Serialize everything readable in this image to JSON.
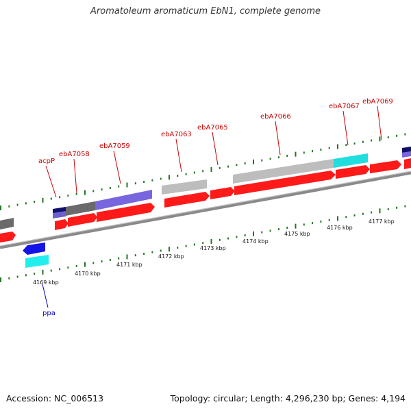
{
  "title": "Aromatoleum aromaticum EbN1, complete genome",
  "footer": {
    "accession": "Accession: NC_006513",
    "stats": "Topology: circular; Length: 4,296,230 bp; Genes: 4,194"
  },
  "colors": {
    "gene_fwd": "#ff1a1a",
    "feature_grey": "#b0b0b0",
    "feature_darkgrey": "#6a6a6a",
    "feature_purple": "#7766dd",
    "feature_cyan": "#22dddd",
    "feature_navy": "#10106a",
    "gene_rev": "#1414e6",
    "backbone": "#888888",
    "ticks": "#227722",
    "label_red": "#cc0000",
    "label_blue": "#0000cc"
  },
  "scale_labels": [
    "4169 kbp",
    "4170 kbp",
    "4171 kbp",
    "4172 kbp",
    "4173 kbp",
    "4174 kbp",
    "4175 kbp",
    "4176 kbp",
    "4177 kbp"
  ],
  "gene_labels": [
    {
      "name": "acpP",
      "color": "label_red"
    },
    {
      "name": "ebA7058",
      "color": "label_red"
    },
    {
      "name": "ebA7059",
      "color": "label_red"
    },
    {
      "name": "ebA7063",
      "color": "label_red"
    },
    {
      "name": "ebA7065",
      "color": "label_red"
    },
    {
      "name": "ebA7066",
      "color": "label_red"
    },
    {
      "name": "ebA7067",
      "color": "label_red"
    },
    {
      "name": "ebA7069",
      "color": "label_red"
    },
    {
      "name": "ppa",
      "color": "label_blue"
    }
  ]
}
